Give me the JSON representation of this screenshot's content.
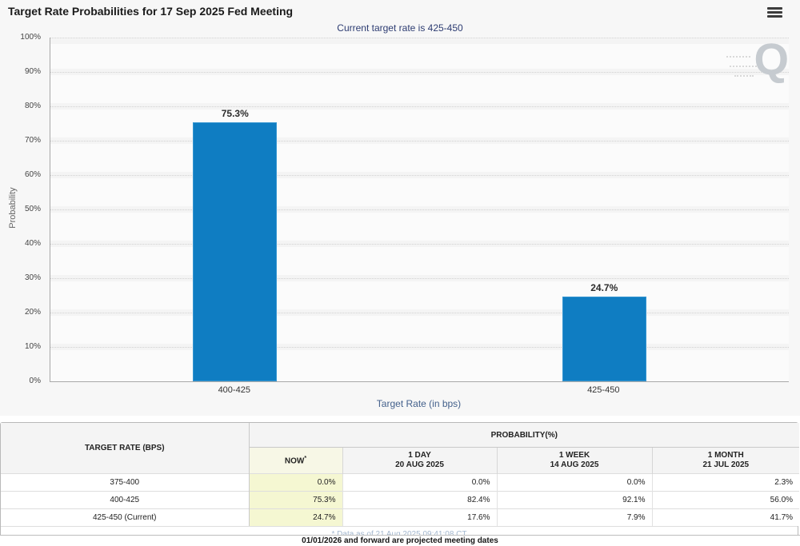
{
  "header": {
    "title": "Target Rate Probabilities for 17 Sep 2025 Fed Meeting",
    "subtitle": "Current target rate is 425-450",
    "menu_icon": "hamburger-icon"
  },
  "chart_data": {
    "type": "bar",
    "title": "Target Rate Probabilities for 17 Sep 2025 Fed Meeting",
    "categories": [
      "400-425",
      "425-450"
    ],
    "values": [
      75.3,
      24.7
    ],
    "value_labels": [
      "75.3%",
      "24.7%"
    ],
    "xlabel": "Target Rate (in bps)",
    "ylabel": "Probability",
    "ylim": [
      0,
      100
    ],
    "ytick_step": 10,
    "ytick_labels": [
      "0%",
      "10%",
      "20%",
      "30%",
      "40%",
      "50%",
      "60%",
      "70%",
      "80%",
      "90%",
      "100%"
    ],
    "grid": "dotted horizontal gridlines",
    "legend": "none",
    "bar_color": "#0f7dc2",
    "watermark": "Q"
  },
  "table": {
    "col1_header": "TARGET RATE (BPS)",
    "group_header": "PROBABILITY(%)",
    "columns": [
      {
        "key": "now",
        "label": "NOW",
        "sup": "*",
        "sub": "",
        "highlight": true
      },
      {
        "key": "1day",
        "label": "1 DAY",
        "sup": "",
        "sub": "20 AUG 2025",
        "highlight": false
      },
      {
        "key": "1week",
        "label": "1 WEEK",
        "sup": "",
        "sub": "14 AUG 2025",
        "highlight": false
      },
      {
        "key": "1month",
        "label": "1 MONTH",
        "sup": "",
        "sub": "21 JUL 2025",
        "highlight": false
      }
    ],
    "rows": [
      {
        "target": "375-400",
        "values": [
          "0.0%",
          "0.0%",
          "0.0%",
          "2.3%"
        ]
      },
      {
        "target": "400-425",
        "values": [
          "75.3%",
          "82.4%",
          "92.1%",
          "56.0%"
        ]
      },
      {
        "target": "425-450 (Current)",
        "values": [
          "24.7%",
          "17.6%",
          "7.9%",
          "41.7%"
        ]
      }
    ],
    "footnote": "* Data as of 21 Aug 2025 09:41:08 CT"
  },
  "footer": {
    "note": "01/01/2026 and forward are projected meeting dates"
  },
  "colors": {
    "bar": "#0f7dc2",
    "now_column_bg": "#f5f7d2",
    "subtitle": "#2d3c72",
    "footnote": "#a4b8cf",
    "panel_bg": "#f7f7f7"
  }
}
